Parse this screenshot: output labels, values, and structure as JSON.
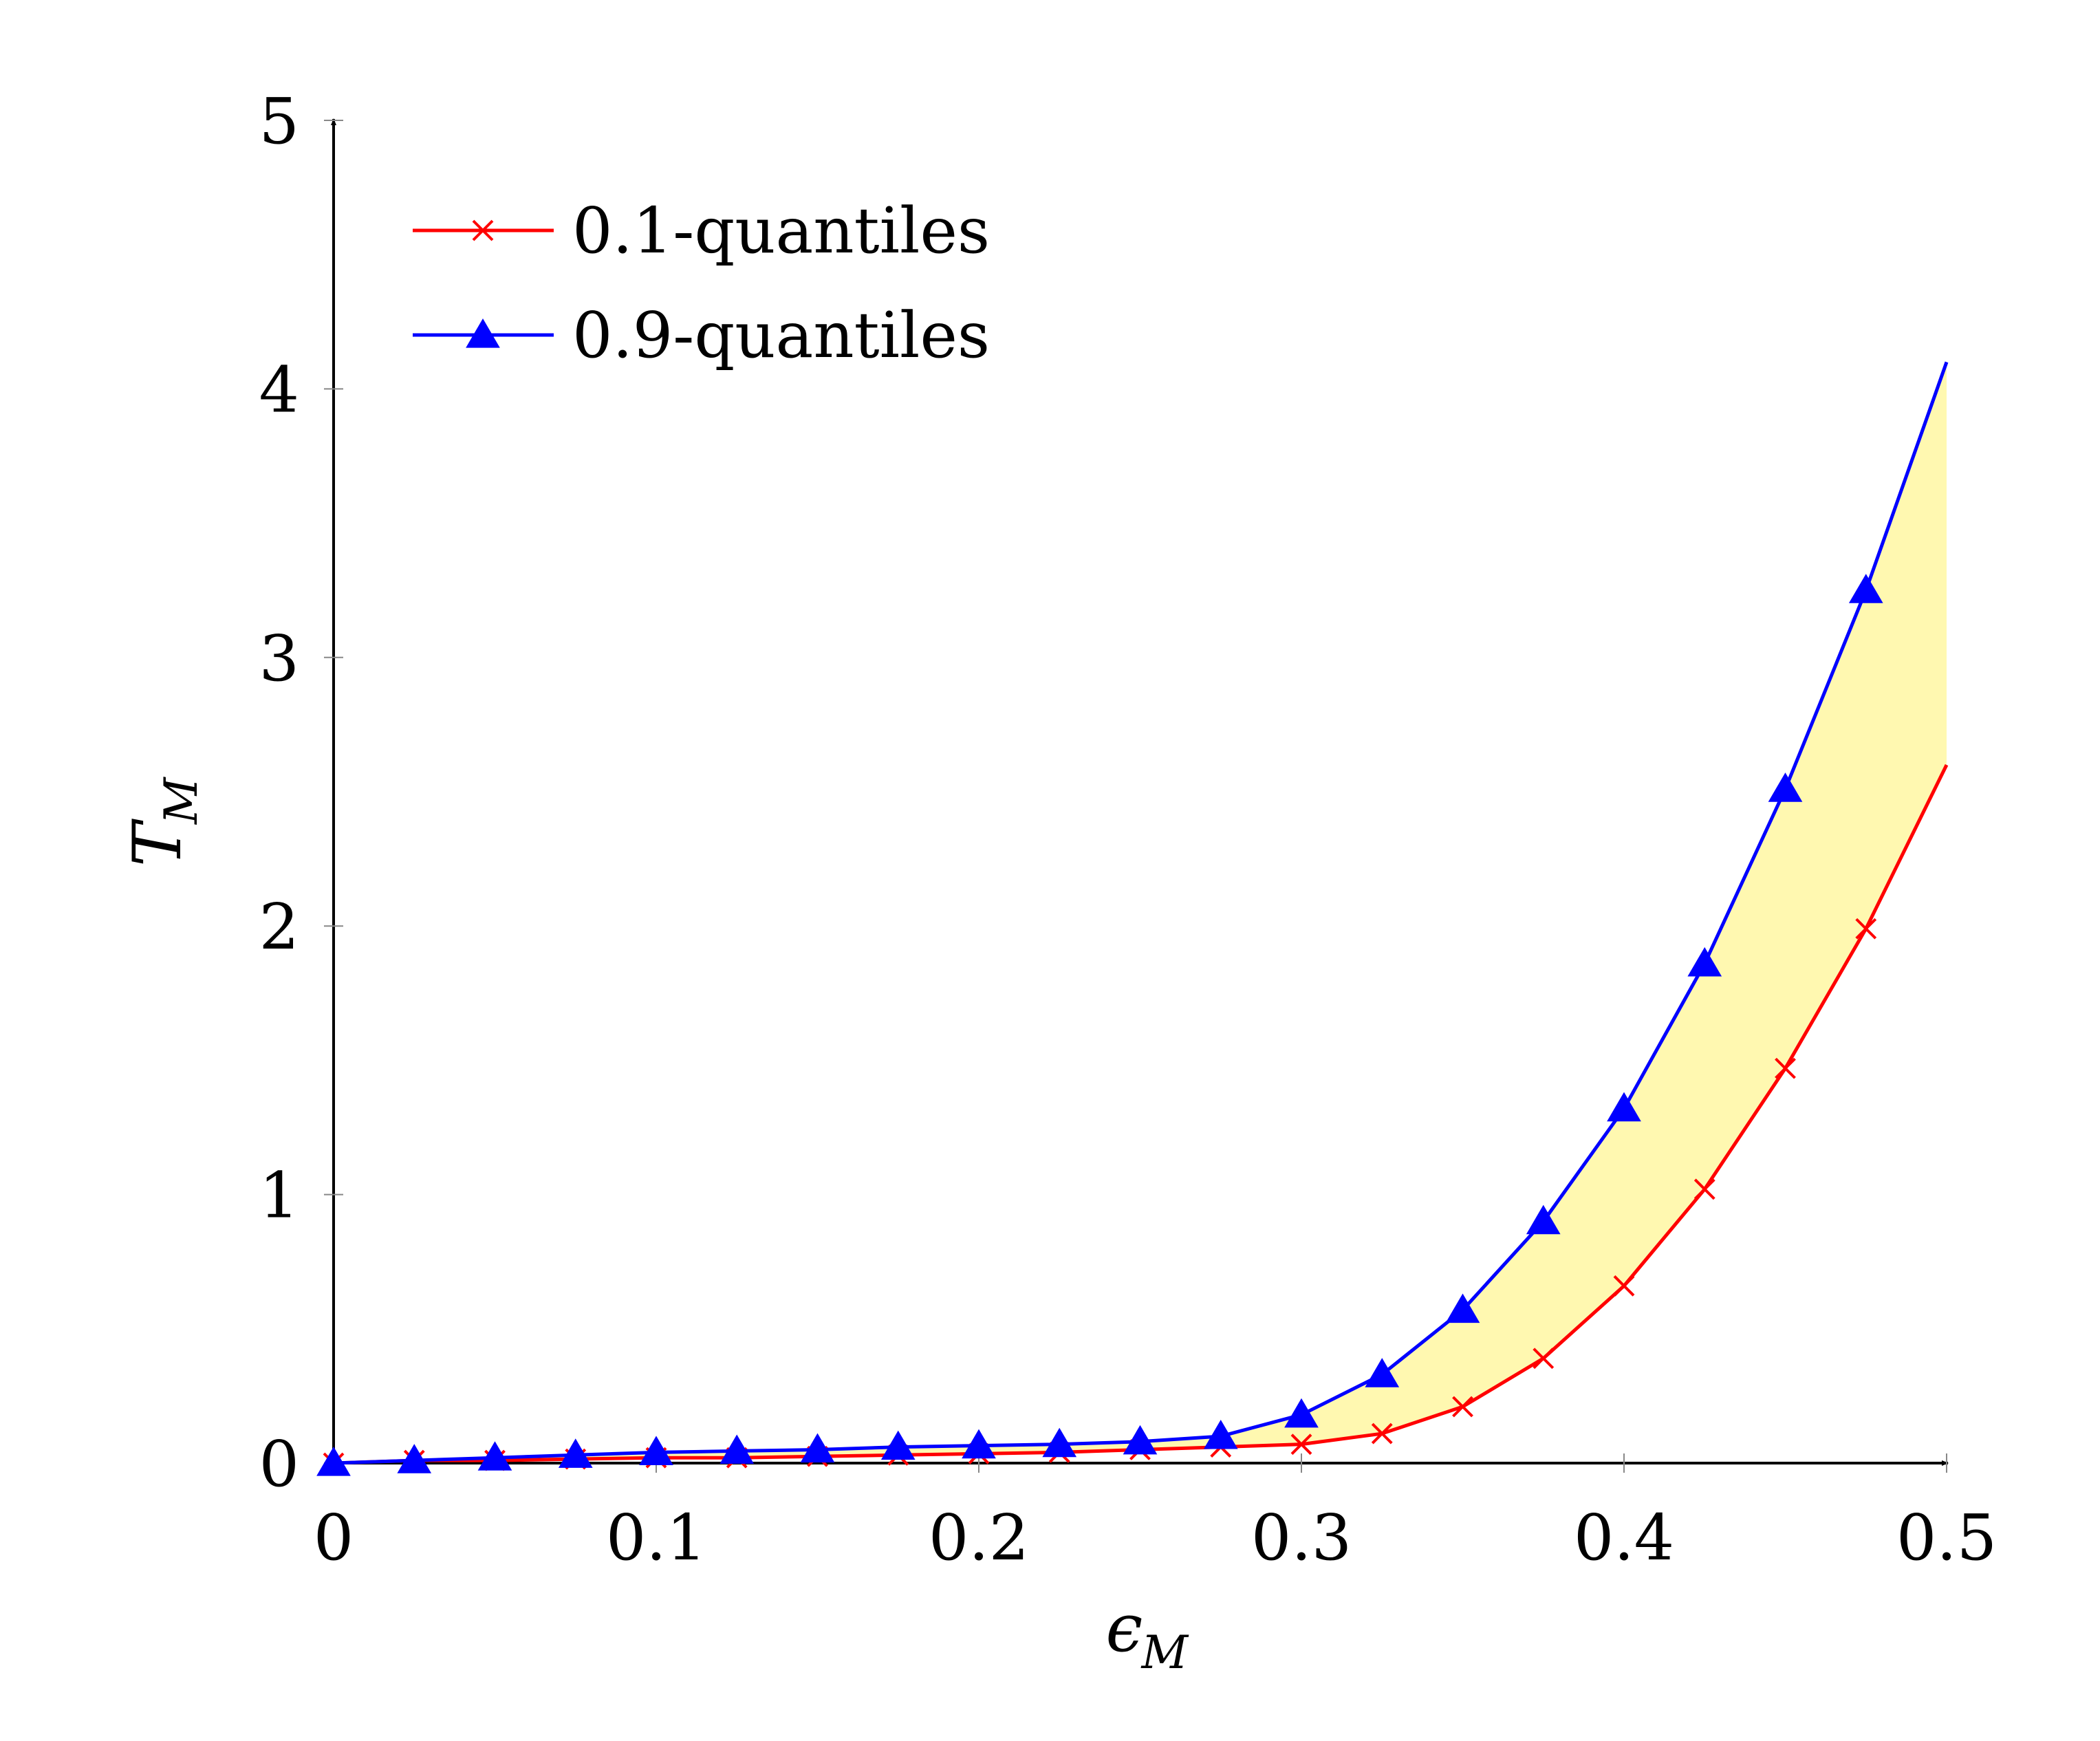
{
  "chart_data": {
    "type": "line",
    "title": "",
    "xlabel": "ϵ",
    "xlabel_subscript": "M",
    "ylabel": "T",
    "ylabel_subscript": "M",
    "xlim": [
      0,
      0.5
    ],
    "ylim": [
      0,
      5
    ],
    "xticks": [
      "0",
      "0.1",
      "0.2",
      "0.3",
      "0.4",
      "0.5"
    ],
    "yticks": [
      "0",
      "1",
      "2",
      "3",
      "4",
      "5"
    ],
    "grid": false,
    "legend_position": "top-left",
    "fill_between": {
      "color": "#fff8b0",
      "between": [
        "0.1-quantiles",
        "0.9-quantiles"
      ]
    },
    "x": [
      0,
      0.025,
      0.05,
      0.075,
      0.1,
      0.125,
      0.15,
      0.175,
      0.2,
      0.225,
      0.25,
      0.275,
      0.3,
      0.325,
      0.35,
      0.375,
      0.4,
      0.425,
      0.45,
      0.475,
      0.5
    ],
    "series": [
      {
        "name": "0.1-quantiles",
        "color": "#ff0000",
        "marker": "x",
        "values": [
          0.0,
          0.01,
          0.01,
          0.015,
          0.02,
          0.02,
          0.025,
          0.03,
          0.035,
          0.04,
          0.05,
          0.06,
          0.07,
          0.11,
          0.21,
          0.39,
          0.66,
          1.02,
          1.47,
          1.99,
          2.6
        ]
      },
      {
        "name": "0.9-quantiles",
        "color": "#0000ff",
        "marker": "triangle",
        "values": [
          0.0,
          0.01,
          0.02,
          0.03,
          0.04,
          0.045,
          0.05,
          0.06,
          0.065,
          0.07,
          0.08,
          0.1,
          0.18,
          0.33,
          0.57,
          0.9,
          1.32,
          1.86,
          2.51,
          3.25,
          4.1
        ]
      }
    ]
  }
}
